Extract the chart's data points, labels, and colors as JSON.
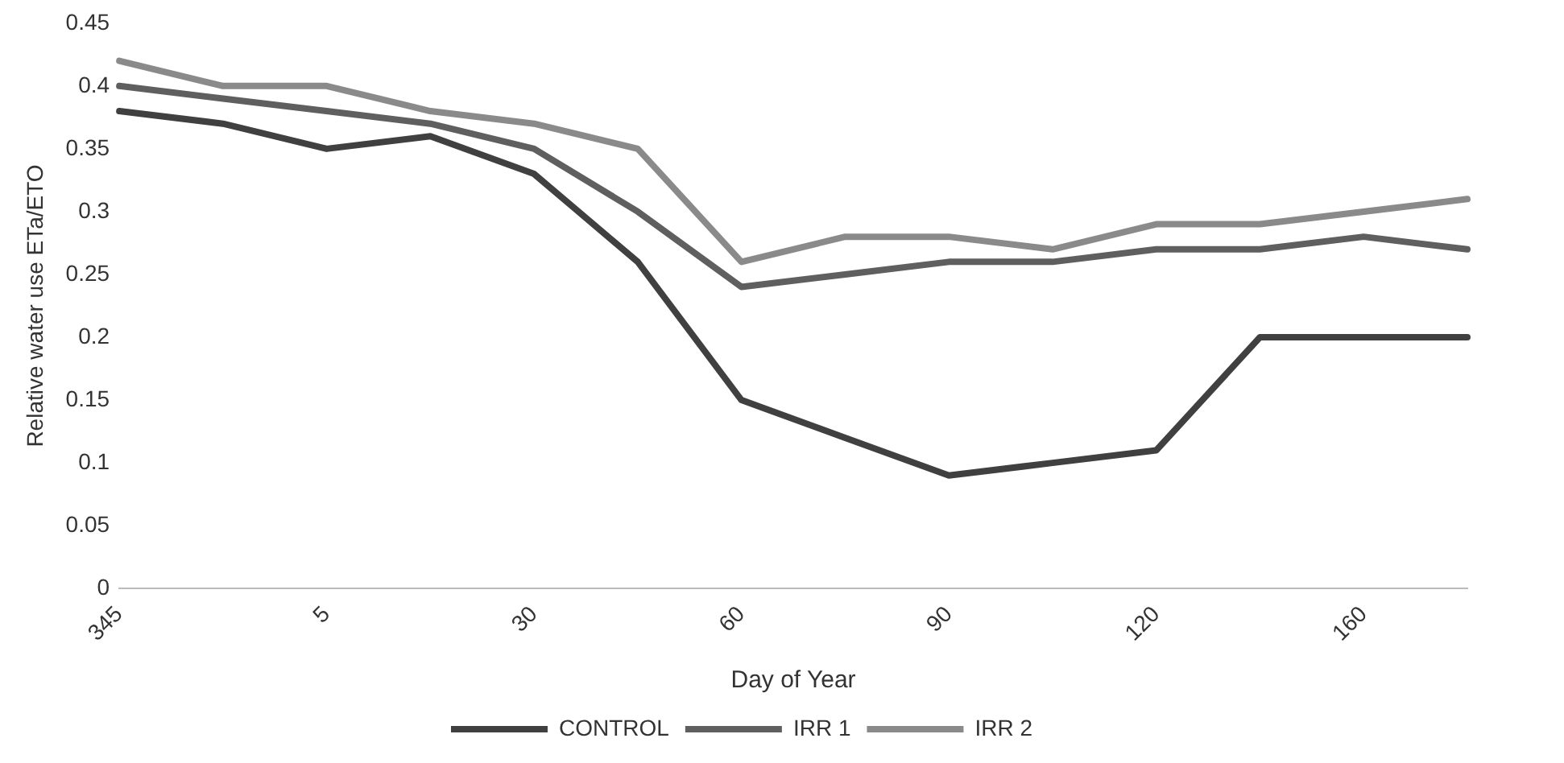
{
  "chart_data": {
    "type": "line",
    "xlabel": "Day of Year",
    "ylabel": "Relative water use ETa/ETO",
    "categories": [
      "345",
      null,
      "5",
      null,
      "30",
      null,
      "60",
      null,
      "90",
      null,
      "120",
      null,
      "160",
      null
    ],
    "series": [
      {
        "name": "CONTROL",
        "color": "#404040",
        "values": [
          0.38,
          0.37,
          0.35,
          0.36,
          0.33,
          0.26,
          0.15,
          0.12,
          0.09,
          0.1,
          0.11,
          0.2,
          0.2,
          0.2
        ]
      },
      {
        "name": "IRR 1",
        "color": "#5f5f5f",
        "values": [
          0.4,
          0.39,
          0.38,
          0.37,
          0.35,
          0.3,
          0.24,
          0.25,
          0.26,
          0.26,
          0.27,
          0.27,
          0.28,
          0.27
        ]
      },
      {
        "name": "IRR 2",
        "color": "#8a8a8a",
        "values": [
          0.42,
          0.4,
          0.4,
          0.38,
          0.37,
          0.35,
          0.26,
          0.28,
          0.28,
          0.27,
          0.29,
          0.29,
          0.3,
          0.31
        ]
      }
    ],
    "ylim": [
      0,
      0.45
    ],
    "yticks": [
      0,
      0.05,
      0.1,
      0.15,
      0.2,
      0.25,
      0.3,
      0.35,
      0.4,
      0.45
    ],
    "grid": false,
    "legend": "bottom",
    "marker": "none",
    "line_style": "solid"
  }
}
